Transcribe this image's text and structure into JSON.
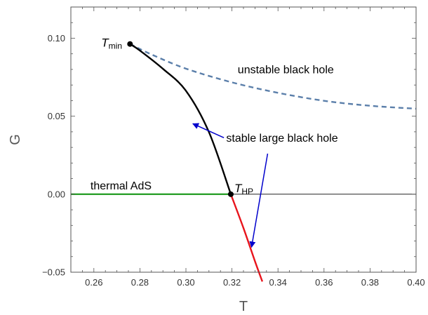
{
  "chart_data": {
    "type": "line",
    "xlabel": "T",
    "ylabel": "G",
    "xlim": [
      0.25,
      0.4
    ],
    "ylim": [
      -0.05,
      0.12
    ],
    "x_ticks": [
      "0.26",
      "0.28",
      "0.30",
      "0.32",
      "0.34",
      "0.36",
      "0.38",
      "0.40"
    ],
    "y_ticks": [
      "-0.05",
      "0.00",
      "0.05",
      "0.10"
    ],
    "series": [
      {
        "key": "unstable",
        "color": "#5b7faa",
        "dash": true,
        "points": [
          [
            0.2757,
            0.0963
          ],
          [
            0.285,
            0.0896
          ],
          [
            0.3,
            0.0805
          ],
          [
            0.32,
            0.0717
          ],
          [
            0.34,
            0.065
          ],
          [
            0.36,
            0.0599
          ],
          [
            0.38,
            0.0567
          ],
          [
            0.4,
            0.0548
          ]
        ]
      },
      {
        "key": "stable-above",
        "color": "#000000",
        "dash": false,
        "points": [
          [
            0.2757,
            0.0963
          ],
          [
            0.28,
            0.0921
          ],
          [
            0.29,
            0.0804
          ],
          [
            0.3,
            0.0663
          ],
          [
            0.31,
            0.0398
          ],
          [
            0.3195,
            0.0
          ]
        ]
      },
      {
        "key": "stable-below",
        "color": "#e8141c",
        "dash": false,
        "points": [
          [
            0.3195,
            0.0
          ],
          [
            0.325,
            -0.0217
          ],
          [
            0.33,
            -0.043
          ],
          [
            0.3332,
            -0.056
          ]
        ]
      },
      {
        "key": "thermal",
        "color": "#2ca02c",
        "dash": false,
        "points": [
          [
            0.25,
            0.0
          ],
          [
            0.3195,
            0.0
          ]
        ]
      }
    ],
    "zero_line": {
      "y": 0.0,
      "from_x": 0.3195,
      "to_x": 0.4,
      "color": "#000000"
    },
    "markers": [
      {
        "key": "tmin",
        "x": 0.2757,
        "y": 0.0963,
        "label_main": "T",
        "label_sub": "min"
      },
      {
        "key": "thp",
        "x": 0.3195,
        "y": 0.0,
        "label_main": "T",
        "label_sub": "HP"
      }
    ],
    "annotations": {
      "unstable": {
        "text": "unstable black hole",
        "x": 0.3225,
        "y": 0.0798
      },
      "stable": {
        "text": "stable large black hole",
        "x": 0.3175,
        "y": 0.0359
      },
      "thermal": {
        "text": "thermal AdS",
        "x": 0.2585,
        "y": 0.003
      }
    },
    "arrows": [
      {
        "from": [
          0.3165,
          0.0362
        ],
        "to": [
          0.303,
          0.0452
        ],
        "color": "#0000cc"
      },
      {
        "from": [
          0.3355,
          0.026
        ],
        "to": [
          0.3285,
          -0.034
        ],
        "color": "#0000cc"
      }
    ]
  }
}
